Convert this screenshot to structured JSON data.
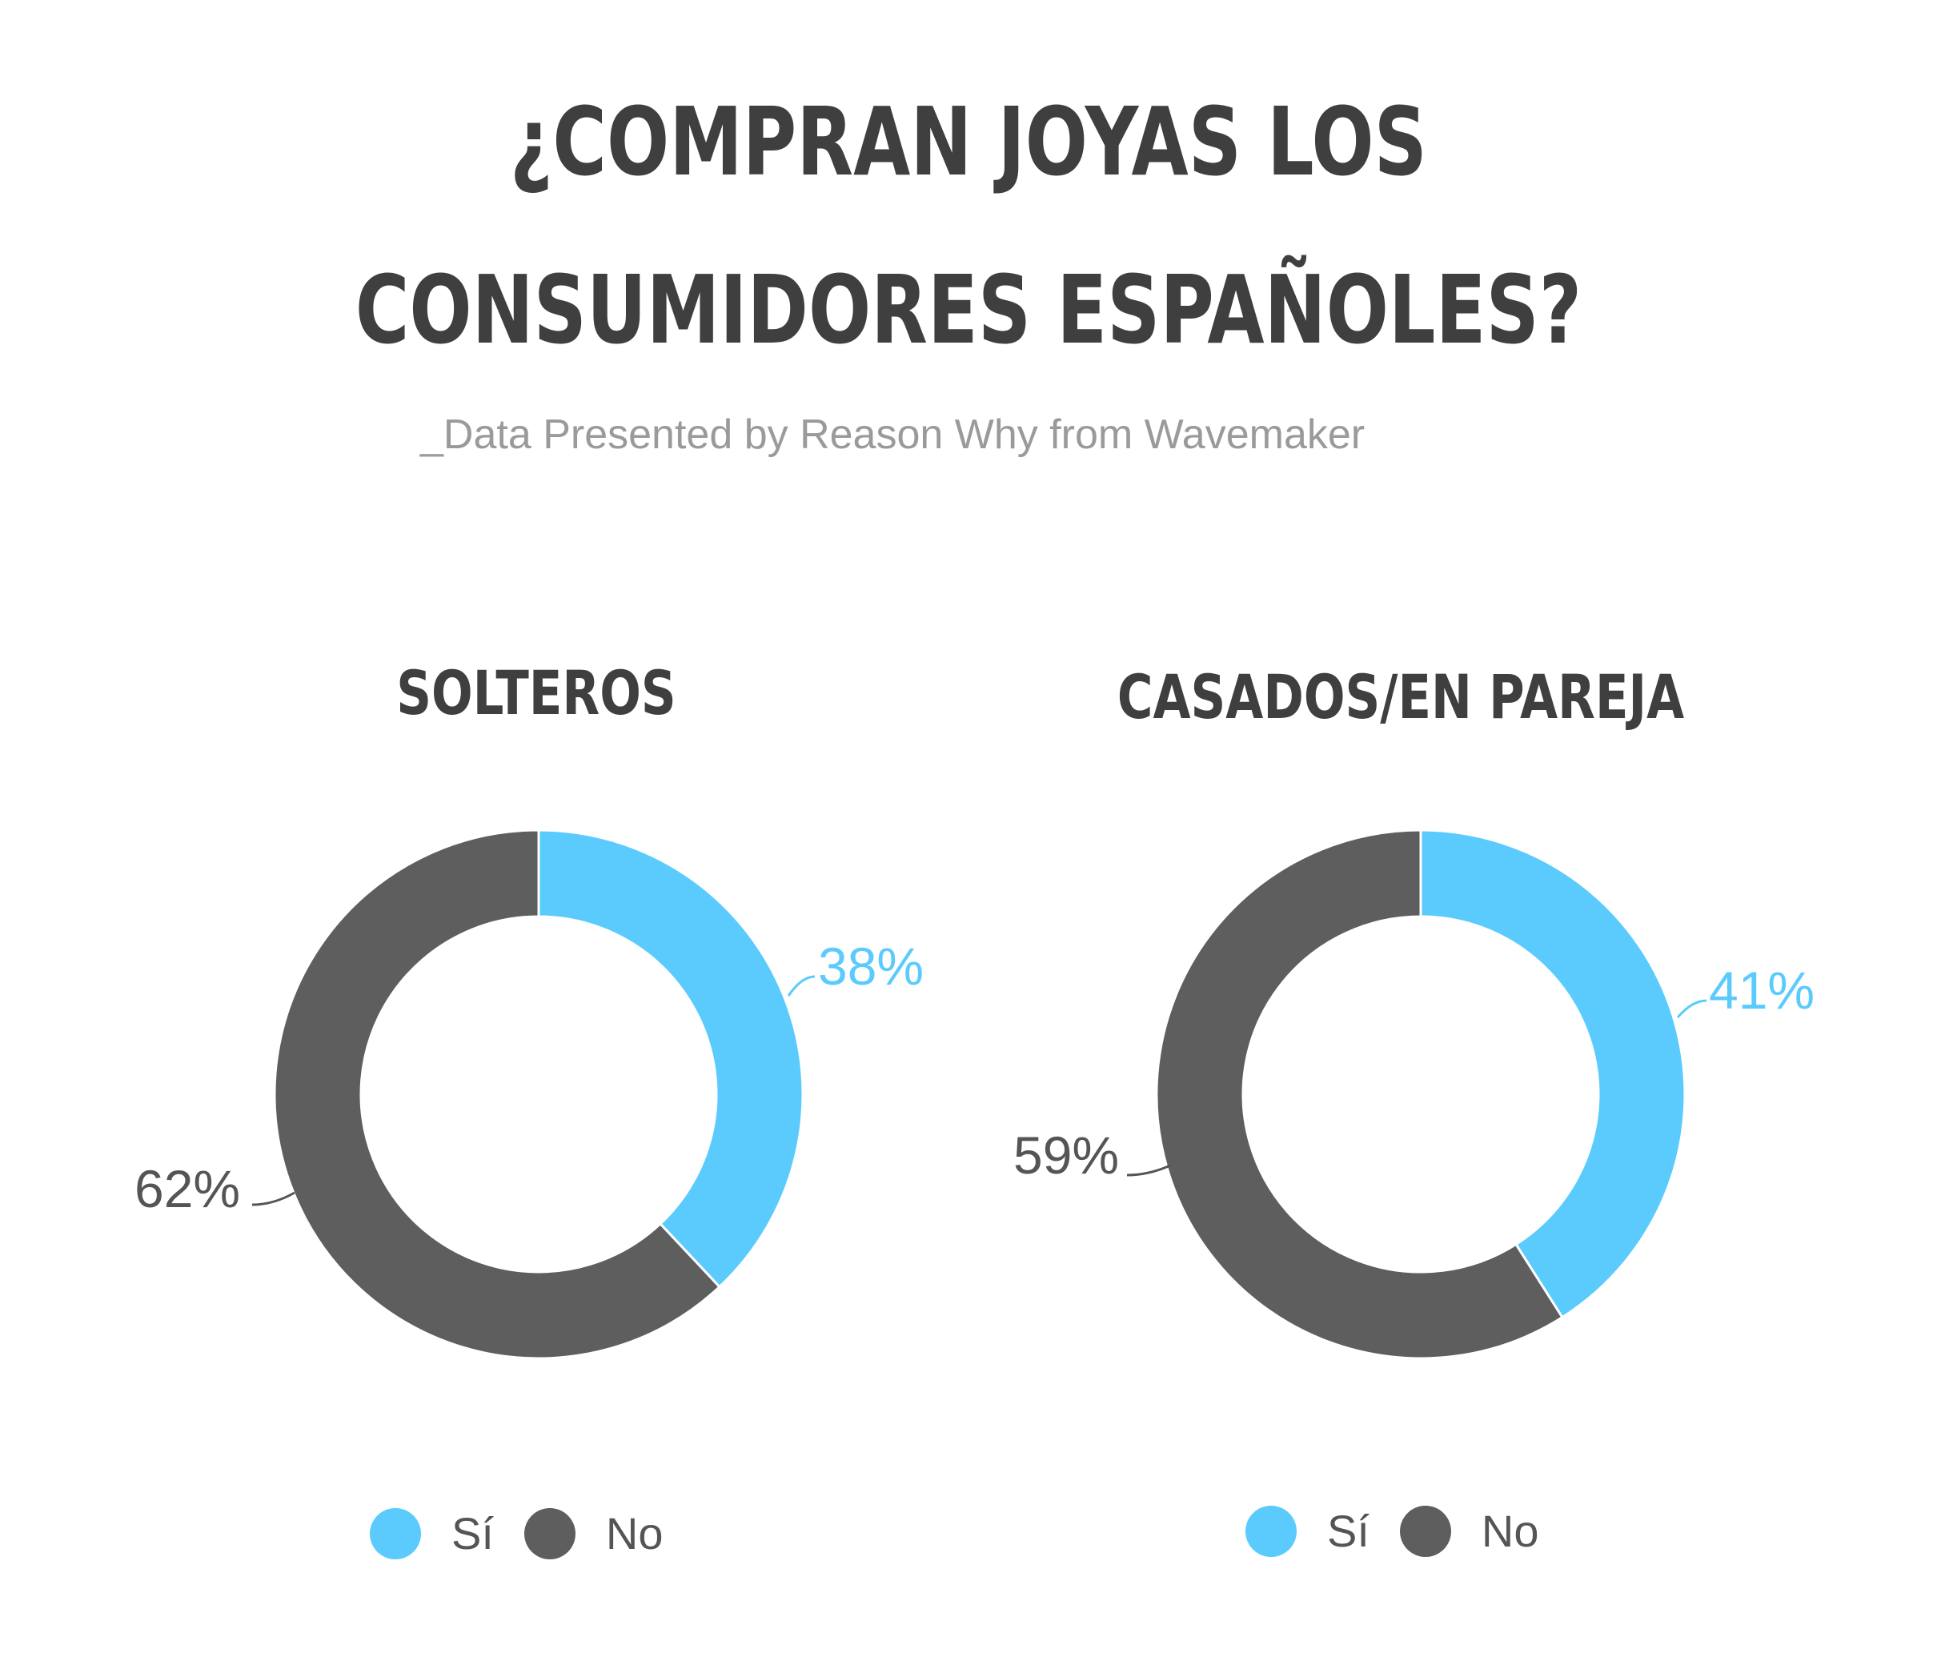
{
  "title": {
    "line1": "¿COMPRAN JOYAS LOS",
    "line2": "CONSUMIDORES ESPAÑOLES?"
  },
  "subtitle": "_Data Presented by Reason Why from Wavemaker",
  "colors": {
    "si": "#5bcbfd",
    "no": "#5e5e5e",
    "label_si": "#5bcbfd",
    "label_no": "#555555"
  },
  "chart_data": [
    {
      "type": "pie",
      "donut": true,
      "title": "SOLTEROS",
      "categories": [
        "Sí",
        "No"
      ],
      "values": [
        38,
        62
      ],
      "labels": [
        "38%",
        "62%"
      ],
      "legend": "bottom"
    },
    {
      "type": "pie",
      "donut": true,
      "title": "CASADOS/EN PAREJA",
      "categories": [
        "Sí",
        "No"
      ],
      "values": [
        41,
        59
      ],
      "labels": [
        "41%",
        "59%"
      ],
      "legend": "bottom"
    }
  ]
}
